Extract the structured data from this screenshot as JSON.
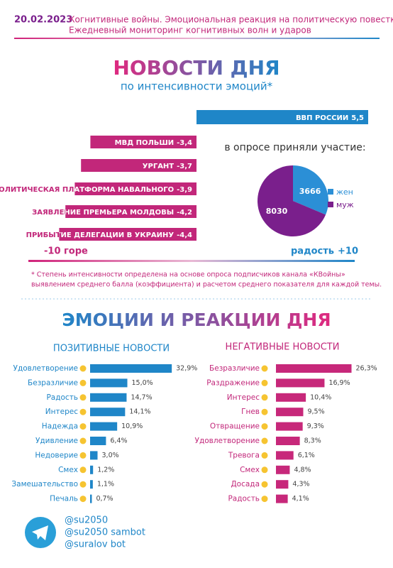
{
  "header": {
    "date": "20.02.2023",
    "line1": "Когнитивные войны. Эмоциональная реакция на политическую повестку",
    "line2": "Ежедневный мониторинг когнитивных волн и ударов"
  },
  "chart_data": [
    {
      "type": "diverging-bar",
      "title": "НОВОСТИ ДНЯ",
      "subtitle": "по интенсивности эмоций*",
      "categories": [
        "ВВП РОССИИ",
        "МВД ПОЛЬШИ",
        "УРГАНТ",
        "ПОЛИТИЧЕСКАЯ ПЛАТФОРМА НАВАЛЬНОГО",
        "ЗАЯВЛЕНИЕ ПРЕМЬЕРА МОЛДОВЫ",
        "ПРИБЫТИЕ ДЕЛЕГАЦИИ В УКРАИНУ"
      ],
      "values": [
        5.5,
        -3.4,
        -3.7,
        -3.9,
        -4.2,
        -4.4
      ],
      "value_labels": [
        "5,5",
        "-3,4",
        "-3,7",
        "-3,9",
        "-4,2",
        "-4,4"
      ],
      "positive_color": "#1f86c8",
      "negative_color": "#c2277a",
      "scale": {
        "min_label": "-10",
        "min_text": "горе",
        "max_text": "радость",
        "max_label": "+10"
      },
      "note": [
        "* Степень интенсивности определена на основе опроса подписчиков канала «КВойны»",
        "выявлением среднего балла (коэффициента) и расчетом среднего показателя для каждой темы."
      ]
    },
    {
      "type": "pie",
      "title": "в опросе приняли участие:",
      "categories": [
        "жен",
        "муж"
      ],
      "values": [
        3666,
        8030
      ],
      "colors": [
        "#2b8fd6",
        "#7a1f8c"
      ]
    },
    {
      "type": "bar",
      "title": "ПОЗИТИВНЫЕ НОВОСТИ",
      "color": "#1f86c8",
      "categories": [
        "Удовлетворение",
        "Безразличие",
        "Радость",
        "Интерес",
        "Надежда",
        "Удивление",
        "Недоверие",
        "Смех",
        "Замешательство",
        "Печаль"
      ],
      "values": [
        32.9,
        15.0,
        14.7,
        14.1,
        10.9,
        6.4,
        3.0,
        1.2,
        1.1,
        0.7
      ],
      "value_labels": [
        "32,9%",
        "15,0%",
        "14,7%",
        "14,1%",
        "10,9%",
        "6,4%",
        "3,0%",
        "1,2%",
        "1,1%",
        "0,7%"
      ]
    },
    {
      "type": "bar",
      "title": "НЕГАТИВНЫЕ НОВОСТИ",
      "color": "#c7287a",
      "categories": [
        "Безразличие",
        "Раздражение",
        "Интерес",
        "Гнев",
        "Отвращение",
        "Удовлетворение",
        "Тревога",
        "Смех",
        "Досада",
        "Радость"
      ],
      "values": [
        26.3,
        16.9,
        10.4,
        9.5,
        9.3,
        8.3,
        6.1,
        4.8,
        4.3,
        4.1
      ],
      "value_labels": [
        "26,3%",
        "16,9%",
        "10,4%",
        "9,5%",
        "9,3%",
        "8,3%",
        "6,1%",
        "4,8%",
        "4,3%",
        "4,1%"
      ]
    }
  ],
  "section_title": "ЭМОЦИИ И РЕАКЦИИ ДНЯ",
  "footer": {
    "handles": [
      "@su2050",
      "@su2050 sambot",
      "@suralov bot"
    ]
  }
}
